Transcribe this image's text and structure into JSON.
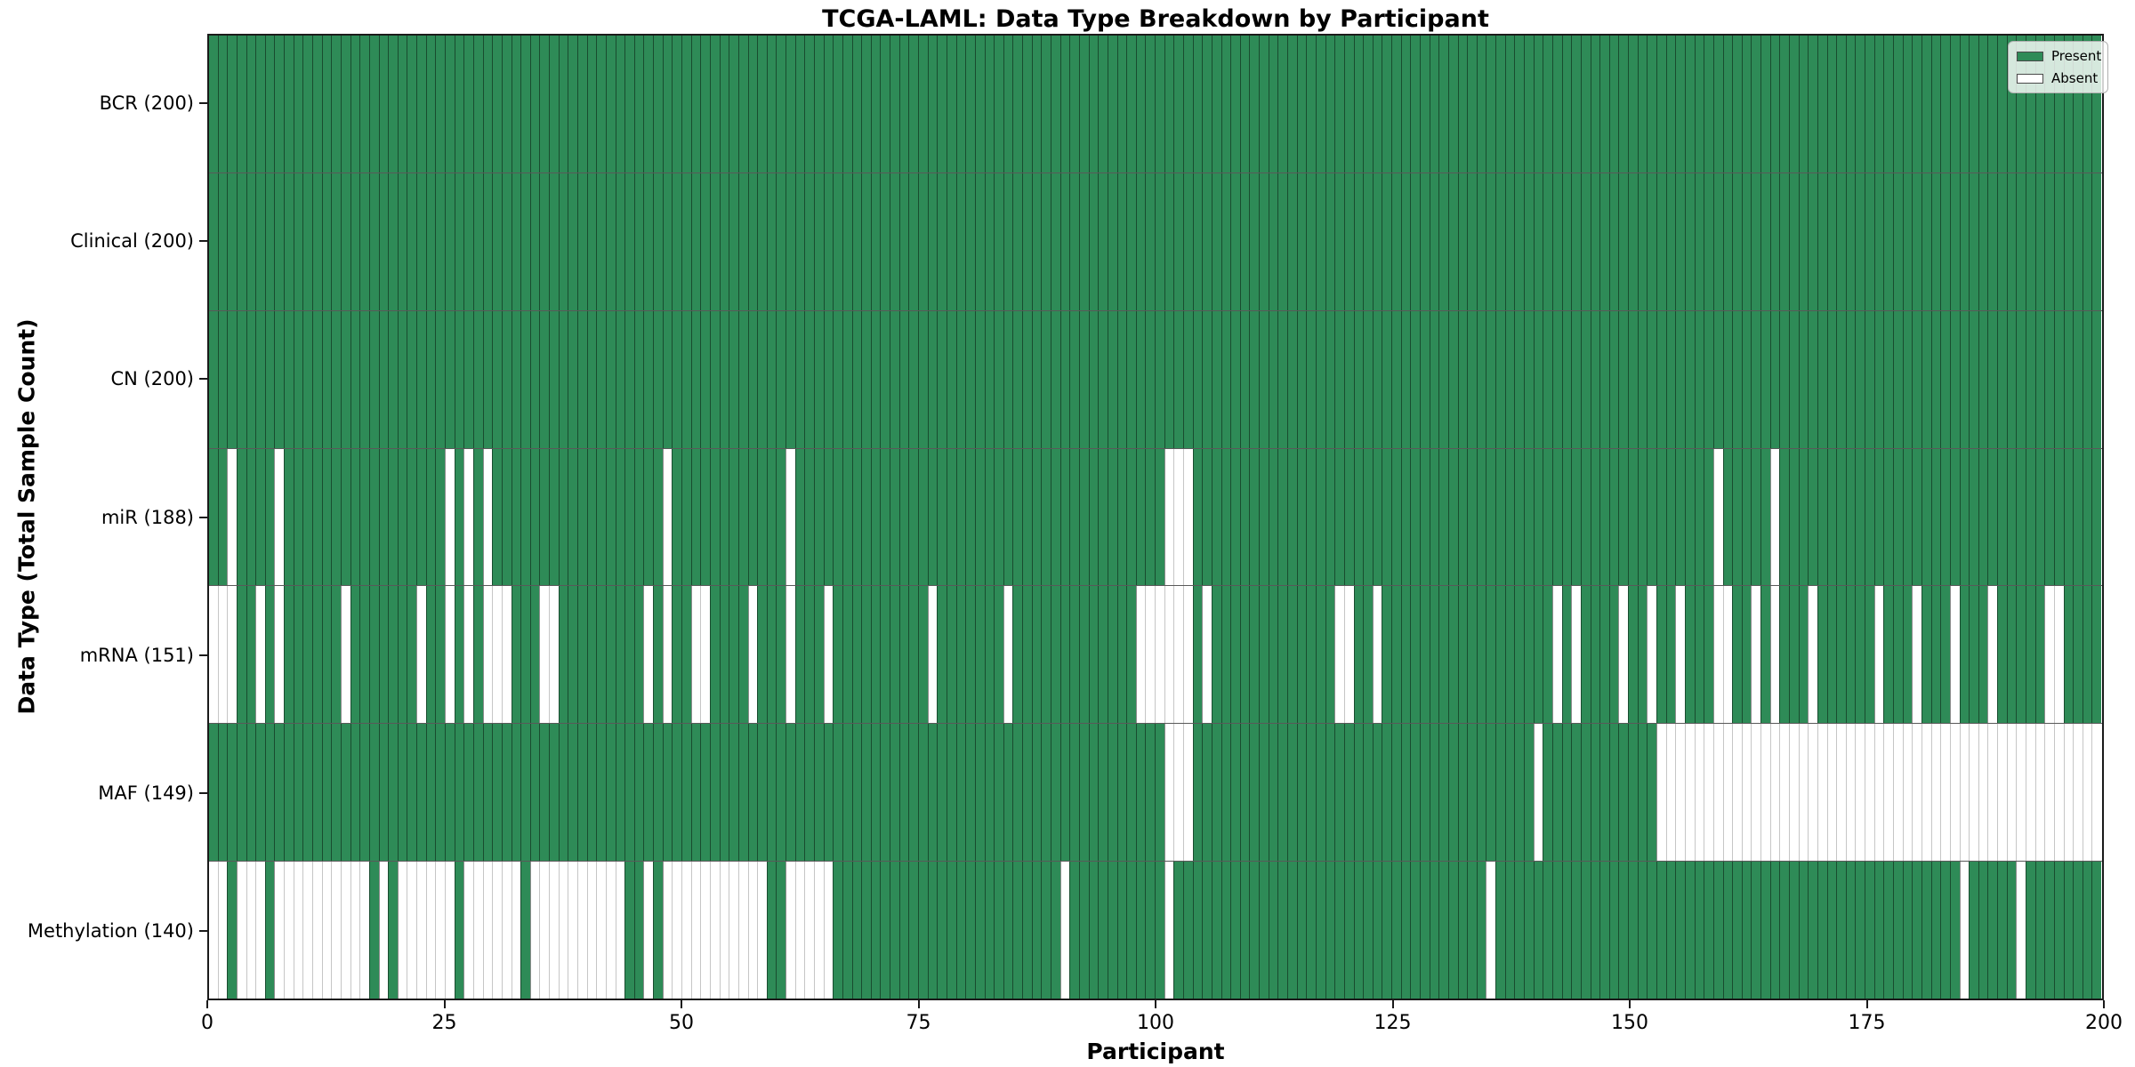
{
  "title": "TCGA-LAML: Data Type Breakdown by Participant",
  "axes": {
    "xlabel": "Participant",
    "ylabel": "Data Type (Total Sample Count)",
    "x_ticks": [
      0,
      25,
      50,
      75,
      100,
      125,
      150,
      175,
      200
    ]
  },
  "legend": {
    "items": [
      {
        "label": "Present",
        "color": "#2e8b57"
      },
      {
        "label": "Absent",
        "color": "#ffffff"
      }
    ]
  },
  "chart_data": {
    "type": "heatmap",
    "title": "TCGA-LAML: Data Type Breakdown by Participant",
    "xlabel": "Participant",
    "ylabel": "Data Type (Total Sample Count)",
    "x_range": [
      0,
      200
    ],
    "n_participants": 200,
    "present_color": "#2e8b57",
    "absent_color": "#ffffff",
    "grid_dark": "rgba(0,0,0,0.45)",
    "grid_light": "#c6c6c6",
    "legend_position": "upper right",
    "rows": [
      {
        "label": "BCR (200)",
        "data_type": "BCR",
        "present_count": 200,
        "absent": []
      },
      {
        "label": "Clinical (200)",
        "data_type": "Clinical",
        "present_count": 200,
        "absent": []
      },
      {
        "label": "CN (200)",
        "data_type": "CN",
        "present_count": 200,
        "absent": []
      },
      {
        "label": "miR (188)",
        "data_type": "miR",
        "present_count": 188,
        "absent": [
          2,
          7,
          25,
          27,
          29,
          48,
          61,
          101,
          102,
          103,
          159,
          165
        ]
      },
      {
        "label": "mRNA (151)",
        "data_type": "mRNA",
        "present_count": 151,
        "absent": [
          0,
          1,
          2,
          5,
          7,
          14,
          22,
          25,
          27,
          29,
          30,
          31,
          35,
          36,
          46,
          48,
          51,
          52,
          57,
          61,
          65,
          76,
          84,
          98,
          99,
          100,
          101,
          102,
          103,
          105,
          119,
          120,
          123,
          142,
          144,
          149,
          152,
          155,
          159,
          160,
          163,
          165,
          169,
          176,
          180,
          184,
          188,
          194,
          195
        ]
      },
      {
        "label": "MAF (149)",
        "data_type": "MAF",
        "present_count": 149,
        "absent": [
          101,
          102,
          103,
          140,
          153,
          154,
          155,
          156,
          157,
          158,
          159,
          160,
          161,
          162,
          163,
          164,
          165,
          166,
          167,
          168,
          169,
          170,
          171,
          172,
          173,
          174,
          175,
          176,
          177,
          178,
          179,
          180,
          181,
          182,
          183,
          184,
          185,
          186,
          187,
          188,
          189,
          190,
          191,
          192,
          193,
          194,
          195,
          196,
          197,
          198,
          199
        ]
      },
      {
        "label": "Methylation (140)",
        "data_type": "Methylation",
        "present_count": 140,
        "absent": [
          0,
          1,
          3,
          4,
          5,
          7,
          8,
          9,
          10,
          11,
          12,
          13,
          14,
          15,
          16,
          18,
          20,
          21,
          22,
          23,
          24,
          25,
          27,
          28,
          29,
          30,
          31,
          32,
          34,
          35,
          36,
          37,
          38,
          39,
          40,
          41,
          42,
          43,
          46,
          48,
          49,
          50,
          51,
          52,
          53,
          54,
          55,
          56,
          57,
          58,
          61,
          62,
          63,
          64,
          65,
          90,
          101,
          135,
          185,
          191
        ]
      }
    ]
  }
}
